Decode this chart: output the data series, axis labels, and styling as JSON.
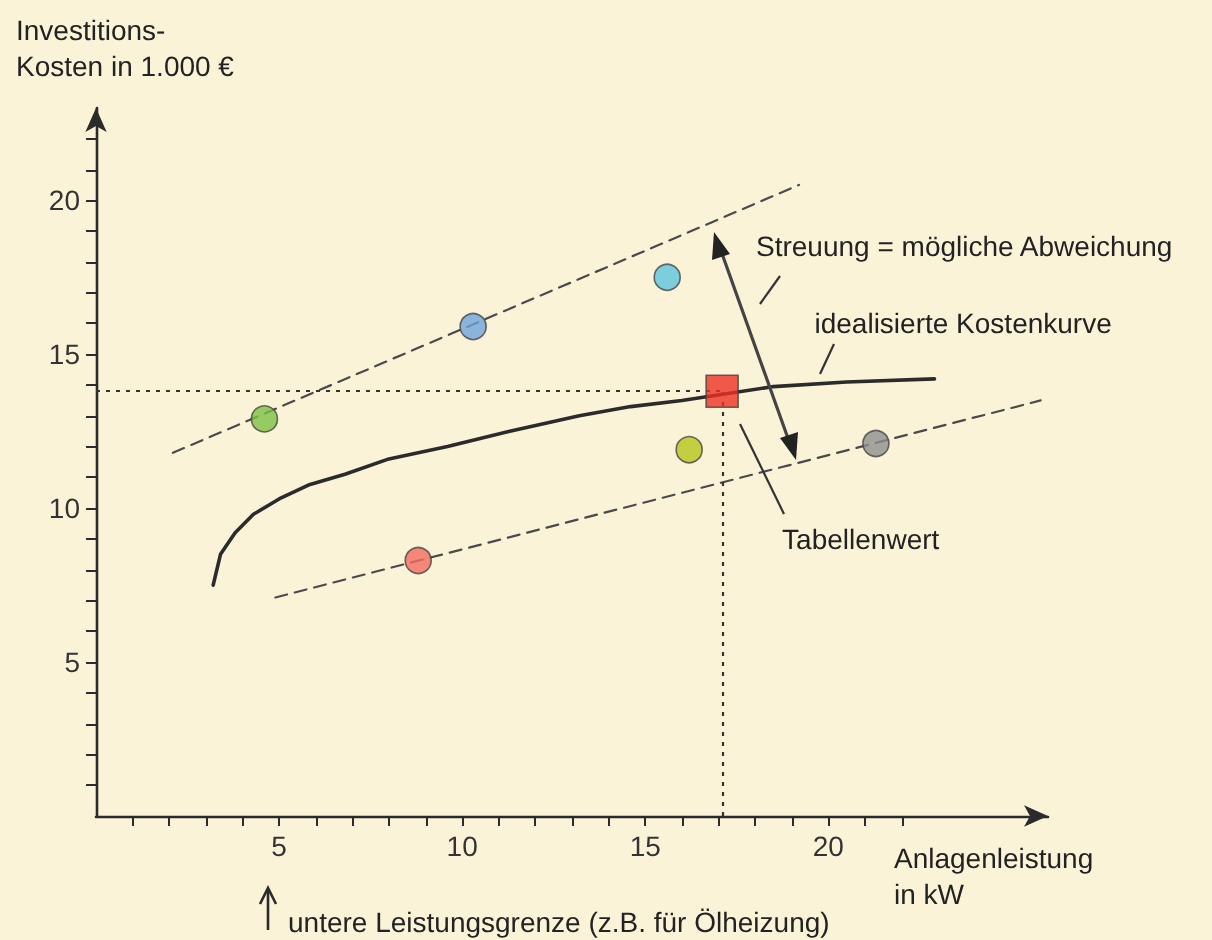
{
  "chart_data": {
    "type": "scatter",
    "xlabel": "Anlagenleistung\nin kW",
    "ylabel": "Investitions-\nKosten in 1.000 €",
    "xlim": [
      0,
      26
    ],
    "ylim": [
      0,
      23
    ],
    "xticks": [
      {
        "value": 1,
        "label": null
      },
      {
        "value": 2,
        "label": null
      },
      {
        "value": 3,
        "label": null
      },
      {
        "value": 4,
        "label": null
      },
      5,
      {
        "value": 6,
        "label": null
      },
      {
        "value": 7,
        "label": null
      },
      {
        "value": 8,
        "label": null
      },
      {
        "value": 9,
        "label": null
      },
      10,
      {
        "value": 11,
        "label": null
      },
      {
        "value": 12,
        "label": null
      },
      {
        "value": 13,
        "label": null
      },
      {
        "value": 14,
        "label": null
      },
      15,
      {
        "value": 16,
        "label": null
      },
      {
        "value": 17,
        "label": null
      },
      {
        "value": 18,
        "label": null
      },
      {
        "value": 19,
        "label": null
      },
      20,
      {
        "value": 21,
        "label": null
      },
      {
        "value": 22,
        "label": null
      }
    ],
    "yticks": [
      {
        "value": 1,
        "label": null
      },
      {
        "value": 2,
        "label": null
      },
      {
        "value": 3,
        "label": null
      },
      {
        "value": 4,
        "label": null
      },
      5,
      {
        "value": 6,
        "label": null
      },
      {
        "value": 7,
        "label": null
      },
      {
        "value": 8,
        "label": null
      },
      {
        "value": 9,
        "label": null
      },
      10,
      {
        "value": 11,
        "label": null
      },
      {
        "value": 12,
        "label": null
      },
      {
        "value": 13,
        "label": null
      },
      {
        "value": 14,
        "label": null
      },
      15,
      {
        "value": 16,
        "label": null
      },
      {
        "value": 17,
        "label": null
      },
      {
        "value": 18,
        "label": null
      },
      {
        "value": 19,
        "label": null
      },
      20,
      {
        "value": 21,
        "label": null
      },
      {
        "value": 22,
        "label": null
      }
    ],
    "grid": false,
    "legend": false,
    "series": [
      {
        "type": "line",
        "name": "idealisierte Kostenkurve",
        "color": "#2b2b2b",
        "marker": "none",
        "line_style": "solid",
        "x": [
          3.2,
          3.4,
          3.8,
          4.3,
          5.0,
          5.8,
          6.8,
          8.0,
          9.6,
          11.3,
          13.2,
          14.6,
          16.0,
          18.5,
          20.5,
          22.9
        ],
        "values": [
          7.5,
          8.5,
          9.2,
          9.8,
          10.3,
          10.75,
          11.1,
          11.6,
          12.0,
          12.5,
          13.0,
          13.3,
          13.5,
          13.95,
          14.1,
          14.2
        ]
      },
      {
        "type": "line",
        "color": "#4a4a4a",
        "marker": "none",
        "line_style": "dashed",
        "x": [
          2.1,
          19.2
        ],
        "values": [
          11.8,
          20.5
        ]
      },
      {
        "type": "line",
        "color": "#4a4a4a",
        "marker": "none",
        "line_style": "dashed",
        "x": [
          4.9,
          25.8
        ],
        "values": [
          7.1,
          13.5
        ]
      },
      {
        "marker": "circle",
        "x": [
          4.6,
          10.3,
          15.6,
          16.2,
          21.3,
          8.8
        ],
        "values": [
          12.9,
          15.9,
          17.5,
          11.9,
          12.1,
          8.3
        ],
        "colors": [
          "#7cc043",
          "#6fa3dc",
          "#5cc3e0",
          "#b6c41c",
          "#8e8e8e",
          "#f26b5f"
        ]
      },
      {
        "name": "Tabellenwert",
        "marker": "square",
        "color": "#ee3124",
        "x": [
          17.1
        ],
        "values": [
          13.8
        ]
      }
    ],
    "ref_lines": [
      {
        "axis": "x",
        "value": 17.1,
        "line_style": "dotted",
        "color": "#333333"
      },
      {
        "axis": "y",
        "value": 13.8,
        "line_style": "dotted",
        "color": "#333333"
      }
    ],
    "annotations": [
      "Streuung = mögliche Abweichung",
      "untere Leistungsgrenze (z.B. für Ölheizung)"
    ]
  }
}
